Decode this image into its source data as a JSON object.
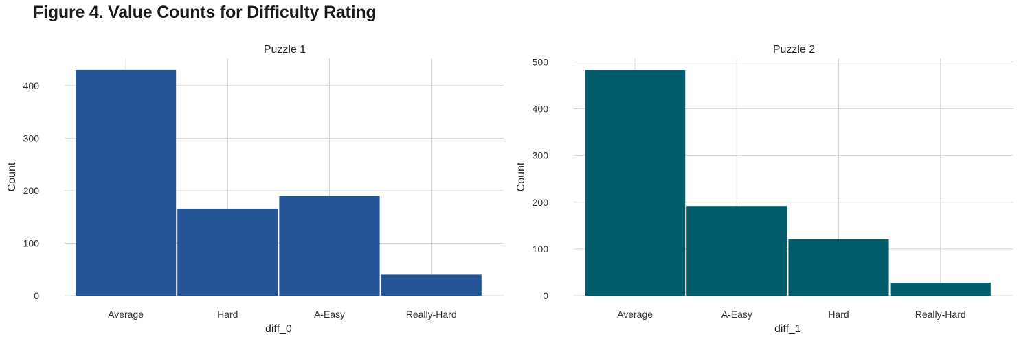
{
  "figure_title": "Figure 4. Value Counts for Difficulty Rating",
  "chart_data": [
    {
      "type": "bar",
      "title": "Puzzle 1",
      "xlabel": "diff_0",
      "ylabel": "Count",
      "categories": [
        "Average",
        "Hard",
        "A-Easy",
        "Really-Hard"
      ],
      "values": [
        430,
        166,
        190,
        40
      ],
      "yticks": [
        0,
        100,
        200,
        300,
        400
      ],
      "ylim": [
        0,
        452
      ],
      "color": "#265597",
      "grid": true
    },
    {
      "type": "bar",
      "title": "Puzzle 2",
      "xlabel": "diff_1",
      "ylabel": "Count",
      "categories": [
        "Average",
        "A-Easy",
        "Hard",
        "Really-Hard"
      ],
      "values": [
        483,
        192,
        121,
        28
      ],
      "yticks": [
        0,
        100,
        200,
        300,
        400,
        500
      ],
      "ylim": [
        0,
        508
      ],
      "color": "#035c6b",
      "grid": true
    }
  ]
}
